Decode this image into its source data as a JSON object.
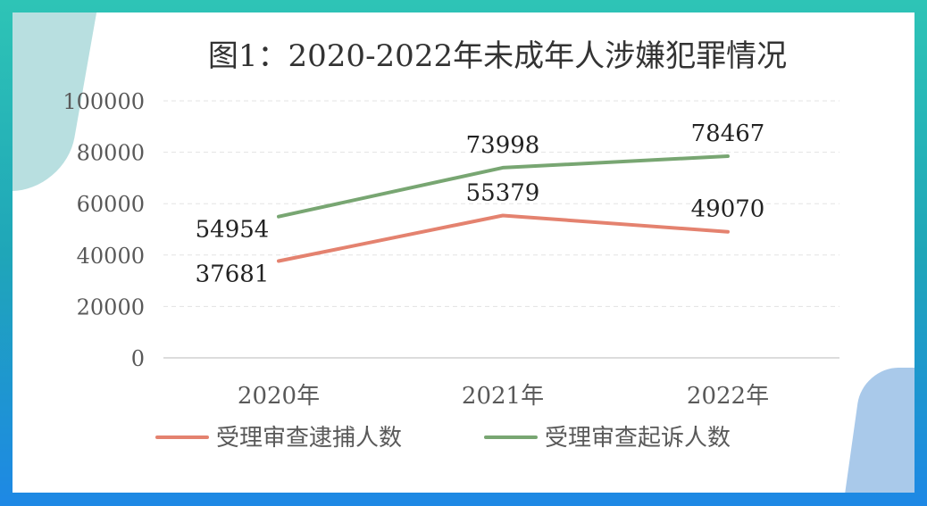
{
  "chart_data": {
    "type": "line",
    "title": "图1：2020-2022年未成年人涉嫌犯罪情况",
    "categories": [
      "2020年",
      "2021年",
      "2022年"
    ],
    "ylim": [
      0,
      100000
    ],
    "yticks": [
      "0",
      "20000",
      "40000",
      "60000",
      "80000",
      "100000"
    ],
    "grid": true,
    "legend_position": "bottom",
    "series": [
      {
        "name": "受理审查逮捕人数",
        "values": [
          37681,
          55379,
          49070
        ],
        "color": "#e4826f",
        "labels": [
          "37681",
          "55379",
          "49070"
        ]
      },
      {
        "name": "受理审查起诉人数",
        "values": [
          54954,
          73998,
          78467
        ],
        "color": "#78a672",
        "labels": [
          "54954",
          "73998",
          "78467"
        ]
      }
    ]
  }
}
